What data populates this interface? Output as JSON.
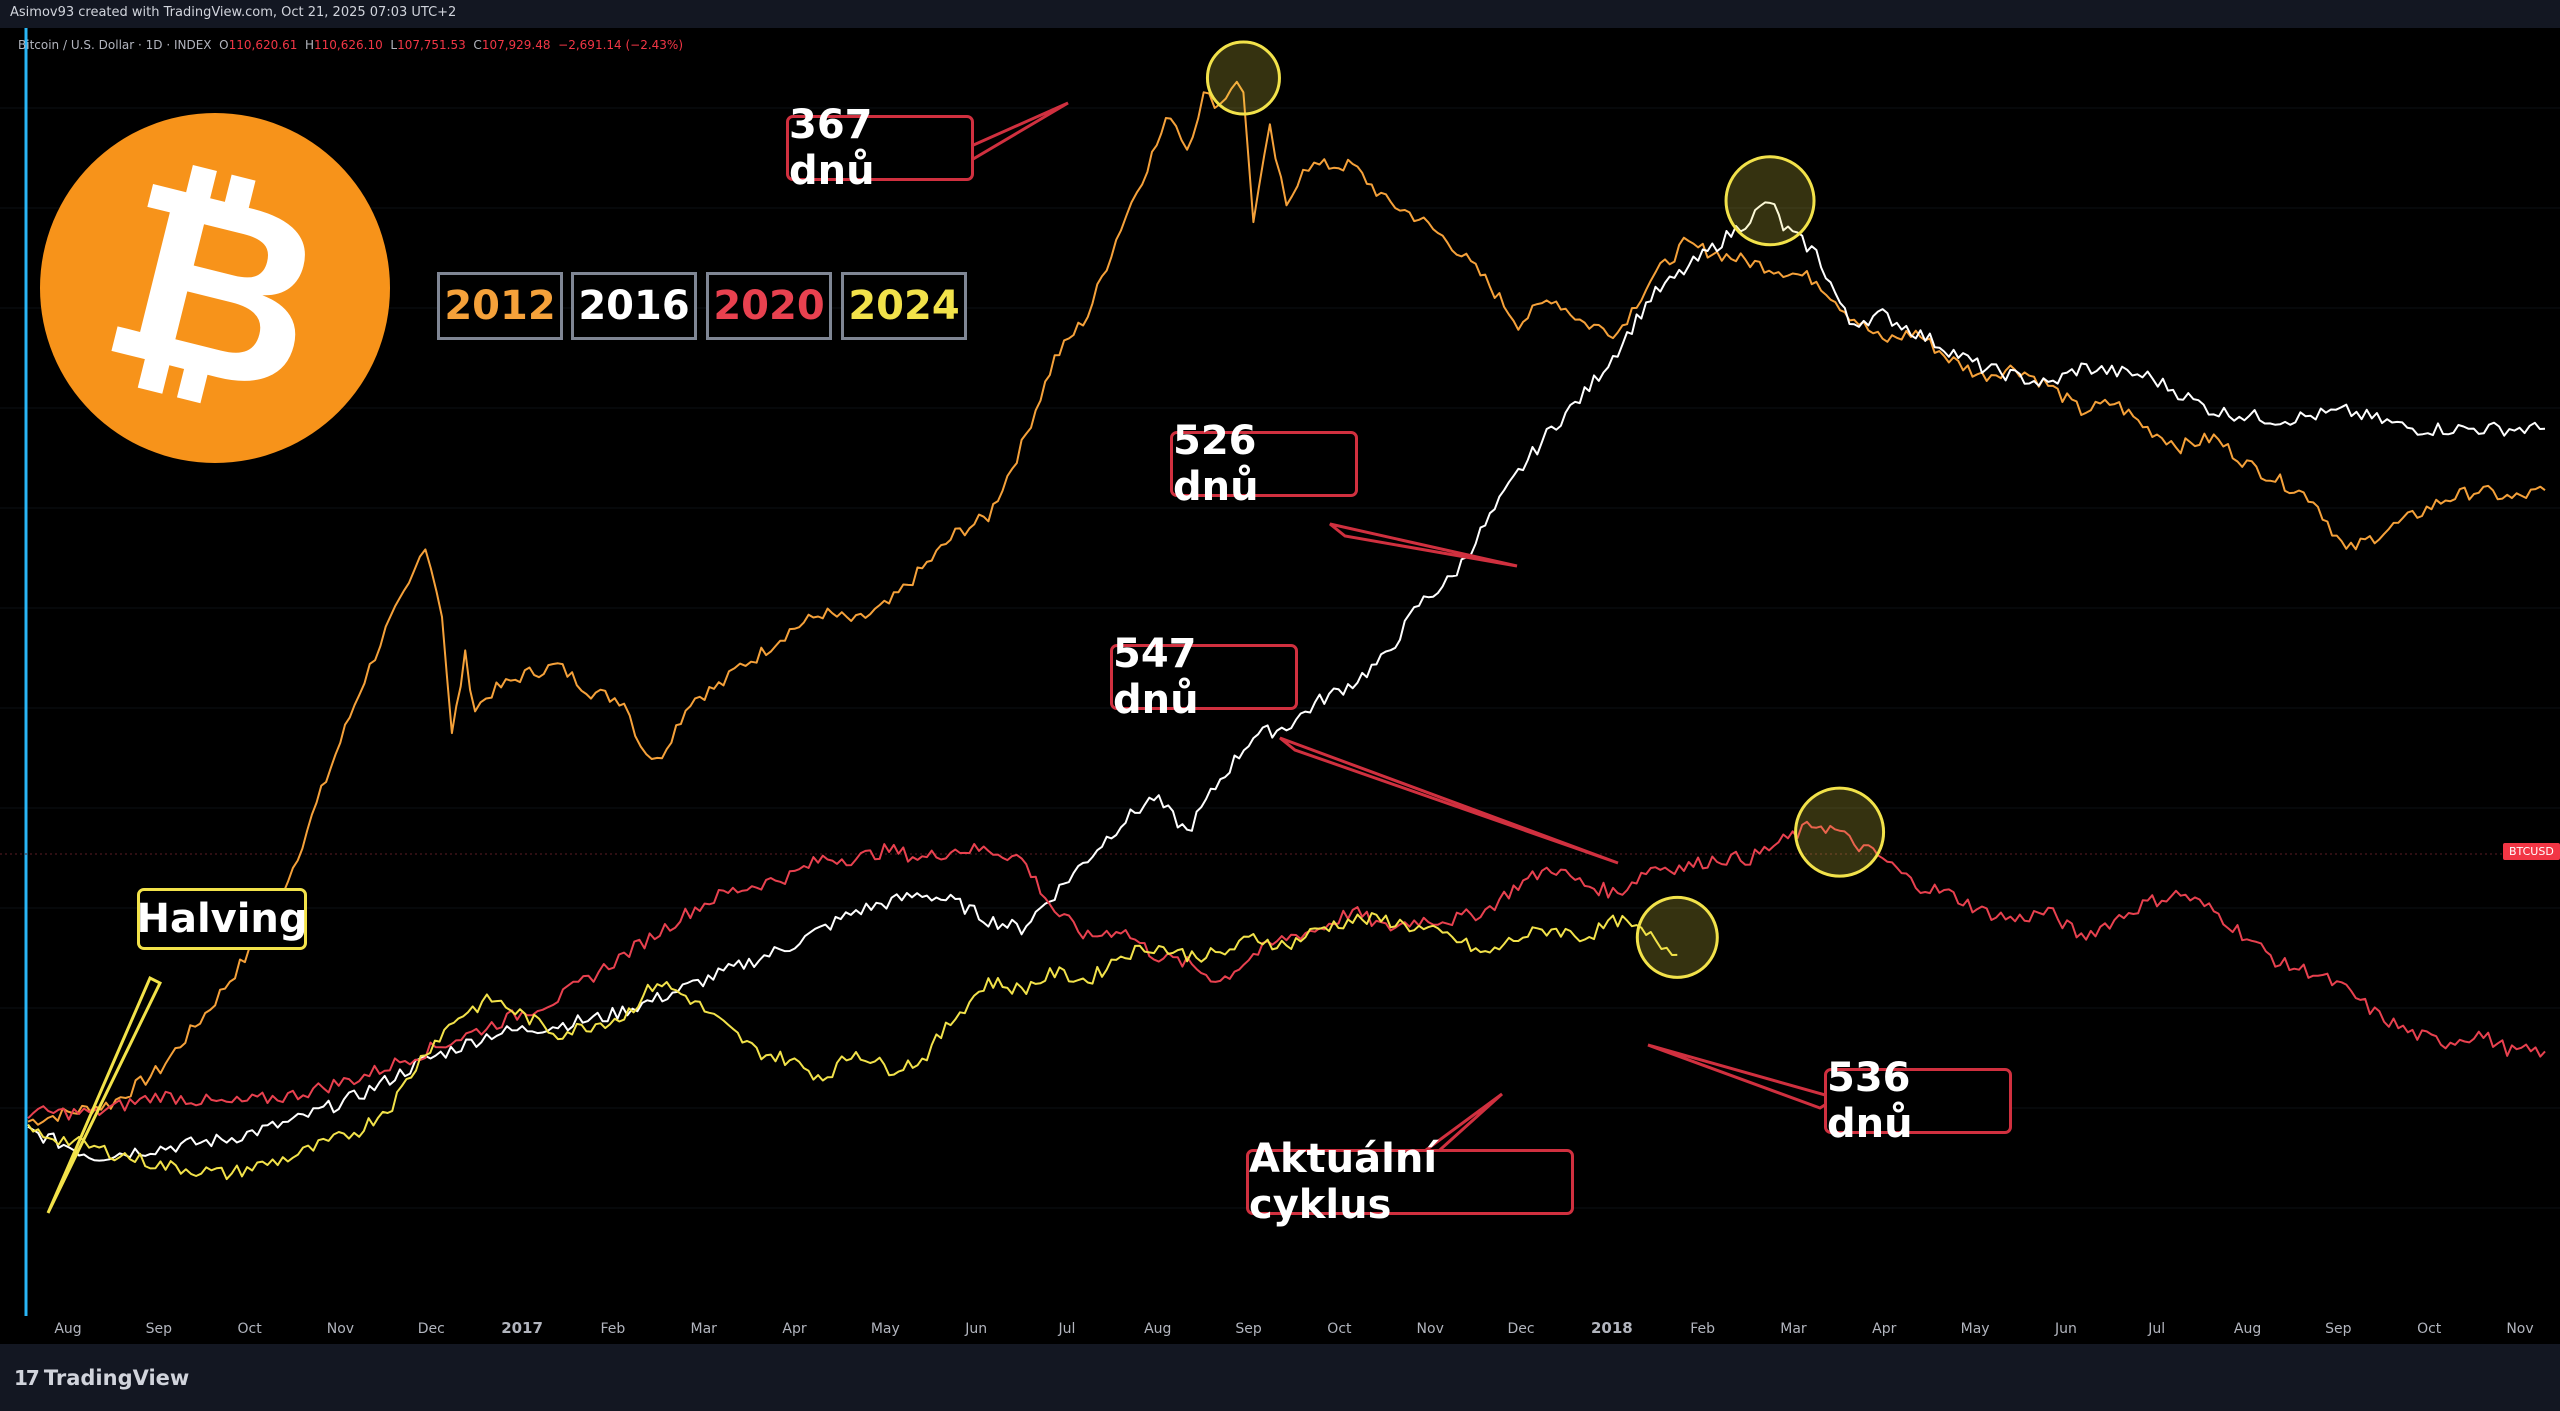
{
  "watermark": "Asimov93 created with TradingView.com, Oct 21, 2025 07:03 UTC+2",
  "ohlc": {
    "symbol": "Bitcoin / U.S. Dollar · 1D · INDEX",
    "open_label": "O",
    "open": "110,620.61",
    "high_label": "H",
    "high": "110,626.10",
    "low_label": "L",
    "low": "107,751.53",
    "close_label": "C",
    "close": "107,929.48",
    "change": "−2,691.14 (−2.43%)"
  },
  "price_tag": "BTCUSD",
  "brand": {
    "name": "TradingView",
    "logo": "tradingview-logo-icon"
  },
  "bitcoin_logo": {
    "glyph": "₿",
    "color": "#f7931a",
    "icon": "bitcoin-logo-icon"
  },
  "legend": [
    {
      "label": "2012",
      "color": "#f5a13a"
    },
    {
      "label": "2016",
      "color": "#ffffff"
    },
    {
      "label": "2020",
      "color": "#e8414f"
    },
    {
      "label": "2024",
      "color": "#f2e24a"
    }
  ],
  "annotations": {
    "halving": "Halving",
    "peak_2012": "367 dnů",
    "peak_2016": "526 dnů",
    "peak_2020": "547 dnů",
    "peak_2024": "536 dnů",
    "current": "Aktuální cyklus"
  },
  "chart_data": {
    "type": "line",
    "title": "Bitcoin / U.S. Dollar · 1D · INDEX",
    "xlabel": "",
    "ylabel": "",
    "grid": true,
    "legend_placement": "top-left",
    "x_tick_labels": [
      "Aug",
      "Sep",
      "Oct",
      "Nov",
      "Dec",
      "2017",
      "Feb",
      "Mar",
      "Apr",
      "May",
      "Jun",
      "Jul",
      "Aug",
      "Sep",
      "Oct",
      "Nov",
      "Dec",
      "2018",
      "Feb",
      "Mar",
      "Apr",
      "May",
      "Jun",
      "Jul",
      "Aug",
      "Sep",
      "Oct",
      "Nov"
    ],
    "x_unit": "days since halving",
    "y_unit": "relative index (halving = 0)",
    "ylim": [
      -10,
      120
    ],
    "series": [
      {
        "name": "2012",
        "color": "#f5a13a",
        "x": [
          0,
          12,
          25,
          40,
          55,
          70,
          80,
          90,
          100,
          108,
          115,
          120,
          125,
          128,
          132,
          135,
          140,
          150,
          160,
          170,
          180,
          185,
          190,
          200,
          210,
          215,
          220,
          230,
          240,
          250,
          260,
          270,
          280,
          290,
          300,
          310,
          320,
          330,
          338,
          345,
          350,
          355,
          360,
          365,
          367,
          370,
          375,
          380,
          385,
          390,
          400,
          410,
          420,
          430,
          440,
          450,
          460,
          470,
          480,
          490,
          500,
          510,
          520,
          530,
          540,
          550,
          560,
          570,
          580,
          590,
          600,
          610,
          620,
          630,
          640,
          650,
          660,
          670,
          680,
          690,
          700,
          710,
          720,
          730,
          740,
          750,
          760
        ],
        "y": [
          1,
          2,
          3,
          7,
          14,
          22,
          30,
          40,
          50,
          57,
          62,
          67,
          59,
          45,
          54,
          48,
          50,
          52,
          53,
          50,
          49,
          44,
          42,
          49,
          51,
          53,
          54,
          57,
          59,
          58,
          60,
          64,
          68,
          70,
          78,
          88,
          93,
          103,
          110,
          116,
          112,
          118,
          117,
          120,
          118,
          104,
          114,
          105,
          110,
          110,
          110,
          106,
          104,
          101,
          97,
          92,
          95,
          92,
          91,
          97,
          101,
          100,
          99,
          98,
          97,
          93,
          90,
          91,
          88,
          86,
          87,
          85,
          82,
          83,
          80,
          78,
          79,
          76,
          74,
          72,
          66,
          68,
          70,
          72,
          73,
          72,
          73
        ]
      },
      {
        "name": "2016",
        "color": "#ffffff",
        "x": [
          0,
          20,
          40,
          60,
          80,
          100,
          120,
          140,
          160,
          175,
          190,
          210,
          230,
          250,
          270,
          280,
          290,
          300,
          310,
          320,
          330,
          340,
          350,
          360,
          370,
          380,
          390,
          400,
          410,
          420,
          430,
          440,
          450,
          460,
          470,
          480,
          490,
          500,
          510,
          520,
          526,
          530,
          540,
          550,
          560,
          570,
          580,
          590,
          600,
          610,
          620,
          640,
          660,
          680,
          700,
          720,
          740,
          760
        ],
        "y": [
          0,
          -3,
          -2,
          -1,
          1,
          4,
          8,
          11,
          12,
          13,
          15,
          18,
          21,
          25,
          27,
          26,
          24,
          23,
          27,
          31,
          35,
          38,
          34,
          40,
          45,
          46,
          49,
          51,
          54,
          60,
          63,
          69,
          75,
          80,
          84,
          89,
          95,
          98,
          101,
          104,
          106,
          103,
          100,
          92,
          93,
          91,
          89,
          87,
          86,
          85,
          87,
          86,
          82,
          81,
          82,
          80,
          80,
          80
        ]
      },
      {
        "name": "2020",
        "color": "#e8414f",
        "x": [
          0,
          20,
          40,
          60,
          80,
          100,
          120,
          140,
          160,
          180,
          200,
          210,
          220,
          230,
          240,
          250,
          260,
          270,
          280,
          290,
          300,
          310,
          320,
          330,
          340,
          350,
          360,
          370,
          380,
          390,
          400,
          410,
          420,
          430,
          440,
          450,
          460,
          470,
          480,
          490,
          500,
          510,
          520,
          530,
          540,
          547,
          550,
          560,
          570,
          580,
          590,
          600,
          610,
          620,
          630,
          640,
          650,
          660,
          670,
          680,
          690,
          700,
          710,
          720,
          730,
          740,
          750,
          760
        ],
        "y": [
          2,
          2,
          4,
          3,
          4,
          6,
          9,
          12,
          15,
          20,
          25,
          27,
          28,
          29,
          31,
          31,
          32,
          31,
          32,
          32,
          31,
          25,
          22,
          23,
          20,
          19,
          17,
          20,
          22,
          23,
          25,
          23,
          24,
          24,
          25,
          28,
          30,
          28,
          27,
          30,
          30,
          31,
          31,
          33,
          35,
          34,
          33,
          31,
          28,
          27,
          25,
          24,
          25,
          22,
          24,
          26,
          27,
          25,
          22,
          19,
          18,
          16,
          13,
          11,
          10,
          11,
          9,
          9
        ]
      },
      {
        "name": "2024",
        "color": "#f2e24a",
        "x": [
          0,
          20,
          40,
          60,
          80,
          100,
          110,
          120,
          130,
          140,
          150,
          160,
          170,
          180,
          190,
          200,
          210,
          220,
          230,
          240,
          250,
          260,
          270,
          280,
          290,
          300,
          310,
          320,
          330,
          340,
          350,
          360,
          370,
          380,
          390,
          400,
          410,
          420,
          430,
          440,
          450,
          460,
          470,
          480,
          490,
          498
        ],
        "y": [
          0,
          -2,
          -4,
          -5,
          -3,
          0,
          3,
          9,
          13,
          15,
          13,
          11,
          12,
          13,
          17,
          15,
          12,
          9,
          8,
          6,
          9,
          7,
          8,
          13,
          17,
          16,
          18,
          17,
          20,
          21,
          20,
          20,
          22,
          21,
          23,
          24,
          24,
          23,
          22,
          20,
          22,
          23,
          22,
          24,
          22,
          20
        ]
      }
    ]
  }
}
